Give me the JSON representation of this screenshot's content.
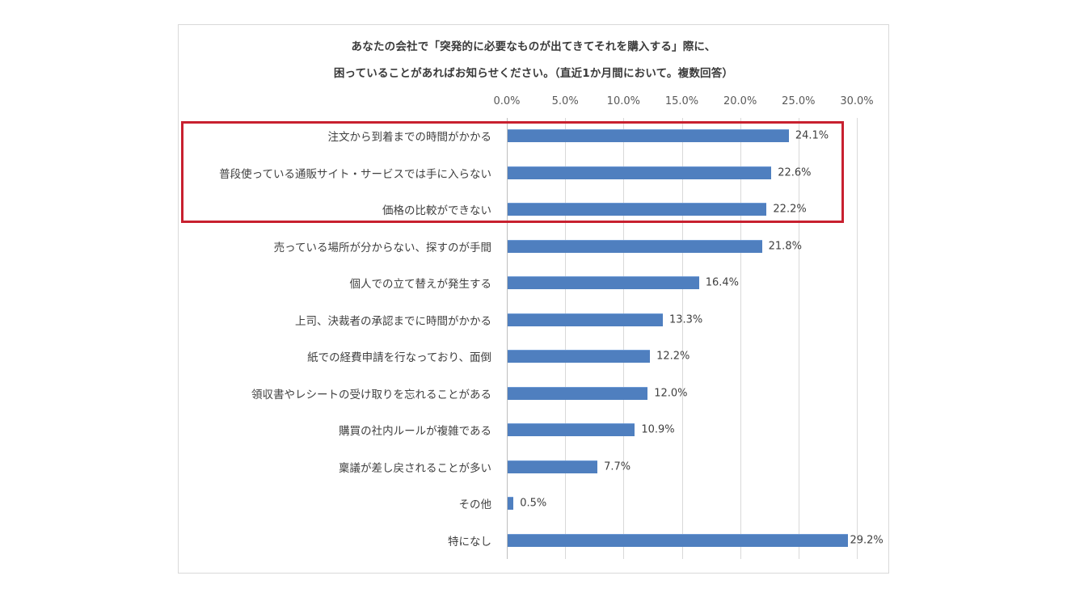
{
  "chart_data": {
    "type": "bar",
    "orientation": "horizontal",
    "title": "あなたの会社で「突発的に必要なものが出てきてそれを購入する」際に、困っていることがあればお知らせください。（直近1か月間において。複数回答）",
    "title_lines": [
      "あなたの会社で「突発的に必要なものが出てきてそれを購入する」際に、",
      "困っていることがあればお知らせください。（直近1か月間において。複数回答）"
    ],
    "xlabel": "",
    "ylabel": "",
    "xlim": [
      0,
      30
    ],
    "x_ticks": [
      "0.0%",
      "5.0%",
      "10.0%",
      "15.0%",
      "20.0%",
      "25.0%",
      "30.0%"
    ],
    "grid": true,
    "legend": null,
    "categories": [
      "注文から到着までの時間がかかる",
      "普段使っている通販サイト・サービスでは手に入らない",
      "価格の比較ができない",
      "売っている場所が分からない、探すのが手間",
      "個人での立て替えが発生する",
      "上司、決裁者の承認までに時間がかかる",
      "紙での経費申請を行なっており、面倒",
      "領収書やレシートの受け取りを忘れることがある",
      "購買の社内ルールが複雑である",
      "稟議が差し戻されることが多い",
      "その他",
      "特になし"
    ],
    "values": [
      24.1,
      22.6,
      22.2,
      21.8,
      16.4,
      13.3,
      12.2,
      12.0,
      10.9,
      7.7,
      0.5,
      29.2
    ],
    "value_labels": [
      "24.1%",
      "22.6%",
      "22.2%",
      "21.8%",
      "16.4%",
      "13.3%",
      "12.2%",
      "12.0%",
      "10.9%",
      "7.7%",
      "0.5%",
      "29.2%"
    ],
    "bar_color": "#4f7fbf",
    "annotations": [
      {
        "type": "highlight-box",
        "color": "#c8202f",
        "covers_categories": [
          0,
          1,
          2
        ]
      }
    ]
  }
}
